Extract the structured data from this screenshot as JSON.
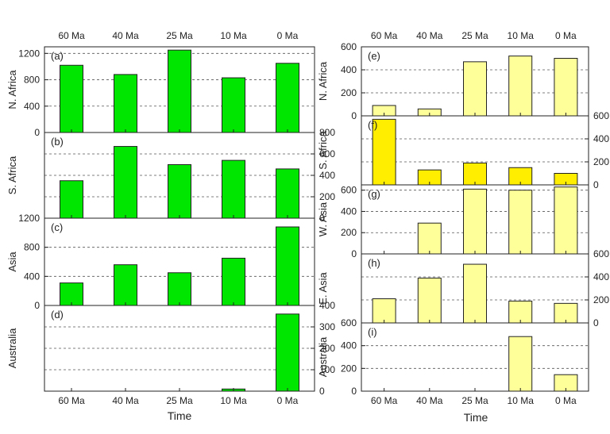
{
  "figure": {
    "time_categories": [
      "60 Ma",
      "40 Ma",
      "25 Ma",
      "10 Ma",
      "0 Ma"
    ],
    "xlabel": "Time",
    "colors": {
      "green": "#00e600",
      "light_yellow": "#ffff99",
      "yellow": "#ffee00",
      "grid": "#555555",
      "axis": "#222222"
    }
  },
  "chart_data": [
    {
      "type": "bar",
      "panel": "left",
      "tag": "(a)",
      "ylabel": "N. Africa",
      "categories": [
        "60 Ma",
        "40 Ma",
        "25 Ma",
        "10 Ma",
        "0 Ma"
      ],
      "values": [
        1020,
        880,
        1250,
        830,
        1050
      ],
      "ylim": [
        0,
        1300
      ],
      "ticks": [
        0,
        400,
        800,
        1200
      ],
      "tick_labels": [
        "0",
        "400",
        "800",
        "1200"
      ],
      "axis_side": "left",
      "grid": [
        400,
        800,
        1200
      ],
      "color": "green"
    },
    {
      "type": "bar",
      "panel": "left",
      "tag": "(b)",
      "ylabel": "S. Africa",
      "categories": [
        "60 Ma",
        "40 Ma",
        "25 Ma",
        "10 Ma",
        "0 Ma"
      ],
      "values": [
        350,
        670,
        500,
        540,
        460
      ],
      "ylim": [
        0,
        800
      ],
      "ticks": [
        0,
        200,
        400,
        600,
        800
      ],
      "tick_labels": [
        "0",
        "200",
        "400",
        "600",
        "800"
      ],
      "axis_side": "right",
      "grid": [
        200,
        400,
        600
      ],
      "color": "green"
    },
    {
      "type": "bar",
      "panel": "left",
      "tag": "(c)",
      "ylabel": "Asia",
      "categories": [
        "60 Ma",
        "40 Ma",
        "25 Ma",
        "10 Ma",
        "0 Ma"
      ],
      "values": [
        310,
        560,
        450,
        650,
        1080
      ],
      "ylim": [
        0,
        1200
      ],
      "ticks": [
        0,
        400,
        800,
        1200
      ],
      "tick_labels": [
        "0",
        "400",
        "800",
        "1200"
      ],
      "axis_side": "left",
      "grid": [
        400,
        800
      ],
      "color": "green"
    },
    {
      "type": "bar",
      "panel": "left",
      "tag": "(d)",
      "ylabel": "Australia",
      "categories": [
        "60 Ma",
        "40 Ma",
        "25 Ma",
        "10 Ma",
        "0 Ma"
      ],
      "values": [
        0,
        0,
        0,
        10,
        360
      ],
      "ylim": [
        0,
        400
      ],
      "ticks": [
        0,
        100,
        200,
        300,
        400
      ],
      "tick_labels": [
        "0",
        "100",
        "200",
        "300",
        "400"
      ],
      "axis_side": "right",
      "grid": [
        100,
        200,
        300
      ],
      "color": "green"
    },
    {
      "type": "bar",
      "panel": "right",
      "tag": "(e)",
      "ylabel": "N. Africa",
      "categories": [
        "60 Ma",
        "40 Ma",
        "25 Ma",
        "10 Ma",
        "0 Ma"
      ],
      "values": [
        90,
        60,
        470,
        520,
        500
      ],
      "ylim": [
        0,
        600
      ],
      "ticks": [
        0,
        200,
        400,
        600
      ],
      "tick_labels": [
        "0",
        "200",
        "400",
        "600"
      ],
      "axis_side": "left",
      "grid": [
        200,
        400
      ],
      "color": "light_yellow"
    },
    {
      "type": "bar",
      "panel": "right",
      "tag": "(f)",
      "ylabel": "S. Africa",
      "categories": [
        "60 Ma",
        "40 Ma",
        "25 Ma",
        "10 Ma",
        "0 Ma"
      ],
      "values": [
        570,
        130,
        190,
        150,
        100
      ],
      "ylim": [
        0,
        600
      ],
      "ticks": [
        0,
        200,
        400,
        600
      ],
      "tick_labels": [
        "0",
        "200",
        "400",
        "600"
      ],
      "axis_side": "right",
      "grid": [
        200,
        400
      ],
      "color": "yellow"
    },
    {
      "type": "bar",
      "panel": "right",
      "tag": "(g)",
      "ylabel": "W. Asia",
      "categories": [
        "60 Ma",
        "40 Ma",
        "25 Ma",
        "10 Ma",
        "0 Ma"
      ],
      "values": [
        0,
        290,
        610,
        600,
        630
      ],
      "ylim": [
        0,
        650
      ],
      "ticks": [
        0,
        200,
        400,
        600
      ],
      "tick_labels": [
        "0",
        "200",
        "400",
        "600"
      ],
      "axis_side": "left",
      "grid": [
        200,
        400,
        600
      ],
      "color": "light_yellow"
    },
    {
      "type": "bar",
      "panel": "right",
      "tag": "(h)",
      "ylabel": "E. Asia",
      "categories": [
        "60 Ma",
        "40 Ma",
        "25 Ma",
        "10 Ma",
        "0 Ma"
      ],
      "values": [
        210,
        390,
        510,
        190,
        170
      ],
      "ylim": [
        0,
        600
      ],
      "ticks": [
        0,
        200,
        400,
        600
      ],
      "tick_labels": [
        "0",
        "200",
        "400",
        "600"
      ],
      "axis_side": "right",
      "grid": [
        200,
        400
      ],
      "color": "light_yellow"
    },
    {
      "type": "bar",
      "panel": "right",
      "tag": "(i)",
      "ylabel": "Australia",
      "categories": [
        "60 Ma",
        "40 Ma",
        "25 Ma",
        "10 Ma",
        "0 Ma"
      ],
      "values": [
        0,
        0,
        0,
        480,
        145
      ],
      "ylim": [
        0,
        600
      ],
      "ticks": [
        0,
        200,
        400,
        600
      ],
      "tick_labels": [
        "0",
        "200",
        "400",
        "600"
      ],
      "axis_side": "left",
      "grid": [
        200,
        400
      ],
      "color": "light_yellow"
    }
  ]
}
